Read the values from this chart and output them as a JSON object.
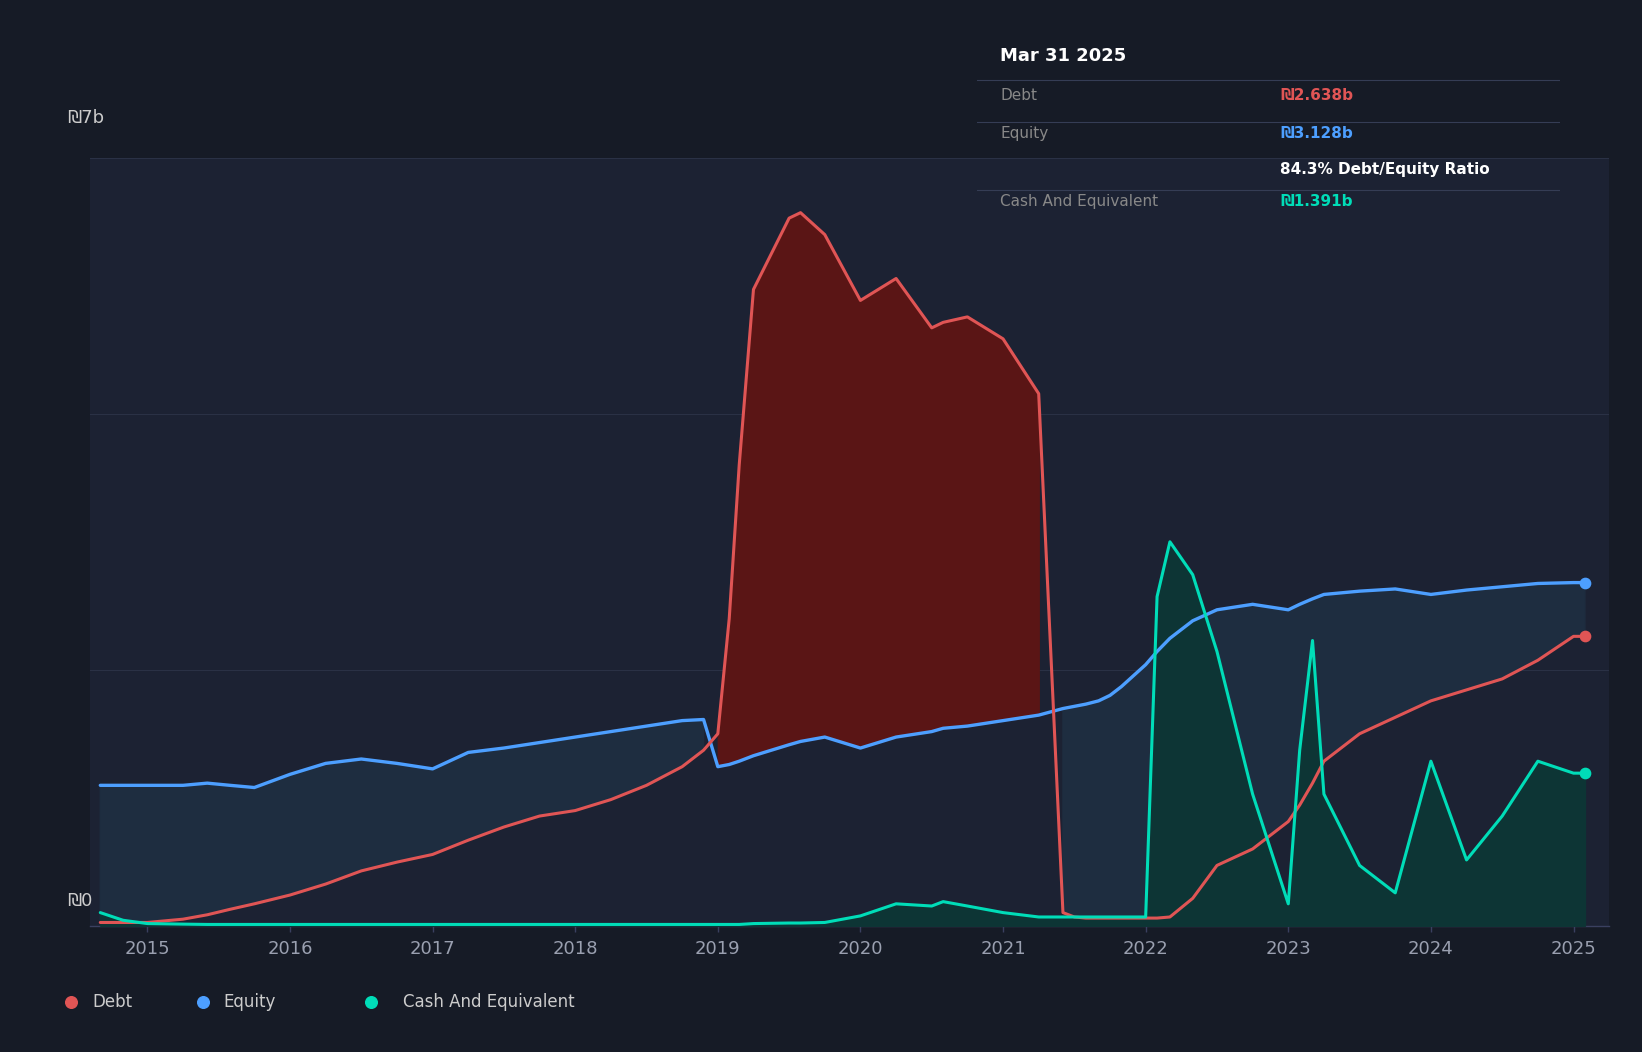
{
  "bg_color": "#161b26",
  "plot_bg_color": "#1c2233",
  "grid_color": "#2a3145",
  "debt_color": "#e05555",
  "equity_color": "#4d9fff",
  "cash_color": "#00ddb8",
  "fill_debt_gt_equity": "#5a1515",
  "fill_equity_gt_debt": "#1e2d40",
  "fill_cash": "#0d3535",
  "tooltip_bg": "#05080d",
  "tooltip_border": "#2e3550",
  "tooltip_title": "Mar 31 2025",
  "tooltip_debt_label": "Debt",
  "tooltip_debt_value": "₪2.638b",
  "tooltip_equity_label": "Equity",
  "tooltip_equity_value": "₪3.128b",
  "tooltip_ratio": "84.3% Debt/Equity Ratio",
  "tooltip_cash_label": "Cash And Equivalent",
  "tooltip_cash_value": "₪1.391b",
  "legend_bg": "#252d3d",
  "ytick_top": "₪7b",
  "ytick_bot": "₪0",
  "xtick_labels": [
    "2015",
    "2016",
    "2017",
    "2018",
    "2019",
    "2020",
    "2021",
    "2022",
    "2023",
    "2024",
    "2025"
  ],
  "years": [
    2014.67,
    2014.83,
    2015.0,
    2015.25,
    2015.42,
    2015.58,
    2015.75,
    2016.0,
    2016.25,
    2016.5,
    2016.75,
    2017.0,
    2017.25,
    2017.5,
    2017.75,
    2018.0,
    2018.25,
    2018.5,
    2018.75,
    2018.9,
    2019.0,
    2019.08,
    2019.15,
    2019.25,
    2019.5,
    2019.58,
    2019.75,
    2020.0,
    2020.25,
    2020.5,
    2020.58,
    2020.75,
    2021.0,
    2021.25,
    2021.42,
    2021.5,
    2021.58,
    2021.67,
    2021.75,
    2021.83,
    2022.0,
    2022.08,
    2022.17,
    2022.33,
    2022.5,
    2022.75,
    2023.0,
    2023.08,
    2023.17,
    2023.25,
    2023.5,
    2023.75,
    2024.0,
    2024.25,
    2024.5,
    2024.75,
    2025.0,
    2025.08
  ],
  "debt": [
    30000000.0,
    30000000.0,
    30000000.0,
    60000000.0,
    100000000.0,
    150000000.0,
    200000000.0,
    280000000.0,
    380000000.0,
    500000000.0,
    580000000.0,
    650000000.0,
    780000000.0,
    900000000.0,
    1000000000.0,
    1050000000.0,
    1150000000.0,
    1280000000.0,
    1450000000.0,
    1600000000.0,
    1750000000.0,
    2800000000.0,
    4200000000.0,
    5800000000.0,
    6450000000.0,
    6500000000.0,
    6300000000.0,
    5700000000.0,
    5900000000.0,
    5450000000.0,
    5500000000.0,
    5550000000.0,
    5350000000.0,
    4850000000.0,
    120000000.0,
    80000000.0,
    70000000.0,
    70000000.0,
    70000000.0,
    70000000.0,
    70000000.0,
    70000000.0,
    80000000.0,
    250000000.0,
    550000000.0,
    700000000.0,
    950000000.0,
    1100000000.0,
    1300000000.0,
    1500000000.0,
    1750000000.0,
    1900000000.0,
    2050000000.0,
    2150000000.0,
    2250000000.0,
    2420000000.0,
    2638000000.0,
    2638000000.0
  ],
  "equity": [
    1280000000.0,
    1280000000.0,
    1280000000.0,
    1280000000.0,
    1300000000.0,
    1280000000.0,
    1260000000.0,
    1380000000.0,
    1480000000.0,
    1520000000.0,
    1480000000.0,
    1430000000.0,
    1580000000.0,
    1620000000.0,
    1670000000.0,
    1720000000.0,
    1770000000.0,
    1820000000.0,
    1870000000.0,
    1880000000.0,
    1450000000.0,
    1470000000.0,
    1500000000.0,
    1550000000.0,
    1650000000.0,
    1680000000.0,
    1720000000.0,
    1620000000.0,
    1720000000.0,
    1770000000.0,
    1800000000.0,
    1820000000.0,
    1870000000.0,
    1920000000.0,
    1980000000.0,
    2000000000.0,
    2020000000.0,
    2050000000.0,
    2100000000.0,
    2180000000.0,
    2380000000.0,
    2500000000.0,
    2620000000.0,
    2780000000.0,
    2880000000.0,
    2930000000.0,
    2880000000.0,
    2930000000.0,
    2980000000.0,
    3020000000.0,
    3050000000.0,
    3070000000.0,
    3020000000.0,
    3060000000.0,
    3090000000.0,
    3120000000.0,
    3128000000.0,
    3128000000.0
  ],
  "cash": [
    120000000.0,
    50000000.0,
    20000000.0,
    15000000.0,
    12000000.0,
    12000000.0,
    12000000.0,
    12000000.0,
    12000000.0,
    12000000.0,
    12000000.0,
    12000000.0,
    12000000.0,
    12000000.0,
    12000000.0,
    12000000.0,
    12000000.0,
    12000000.0,
    12000000.0,
    12000000.0,
    12000000.0,
    12000000.0,
    12000000.0,
    20000000.0,
    25000000.0,
    25000000.0,
    30000000.0,
    90000000.0,
    200000000.0,
    180000000.0,
    220000000.0,
    180000000.0,
    120000000.0,
    80000000.0,
    80000000.0,
    80000000.0,
    80000000.0,
    80000000.0,
    80000000.0,
    80000000.0,
    80000000.0,
    3000000000.0,
    3500000000.0,
    3200000000.0,
    2500000000.0,
    1200000000.0,
    200000000.0,
    1600000000.0,
    2600000000.0,
    1200000000.0,
    550000000.0,
    300000000.0,
    1500000000.0,
    600000000.0,
    1000000000.0,
    1500000000.0,
    1391000000.0,
    1391000000.0
  ],
  "legend_entries": [
    {
      "label": "Debt",
      "color": "#e05555"
    },
    {
      "label": "Equity",
      "color": "#4d9fff"
    },
    {
      "label": "Cash And Equivalent",
      "color": "#00ddb8"
    }
  ]
}
